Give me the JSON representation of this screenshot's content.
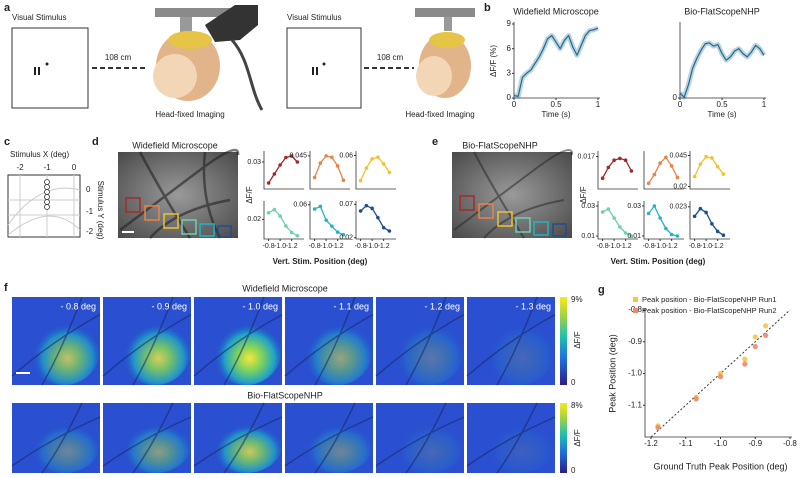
{
  "figure": {
    "panel_labels": [
      "a",
      "b",
      "c",
      "d",
      "e",
      "f",
      "g"
    ]
  },
  "panel_a": {
    "setups": [
      {
        "stimulus_label": "Visual Stimulus",
        "distance": "108 cm",
        "imaging_label": "Head-fixed Imaging"
      },
      {
        "stimulus_label": "Visual Stimulus",
        "distance": "108 cm",
        "imaging_label": "Head-fixed Imaging"
      }
    ]
  },
  "panel_c": {
    "x_label": "Stimulus X (deg)",
    "y_label": "Stimulus Y (deg)",
    "x_ticks": [
      "-2",
      "-1",
      "0"
    ],
    "y_ticks": [
      "0",
      "-1",
      "-2"
    ]
  },
  "panel_d": {
    "image_title": "Widefield Microscope",
    "y_label": "ΔF/F",
    "x_label": "Vert. Stim. Position (deg)"
  },
  "panel_e": {
    "image_title": "Bio-FlatScopeNHP",
    "y_label": "ΔF/F",
    "x_label": "Vert. Stim. Position (deg)"
  },
  "panel_f": {
    "rows": [
      {
        "title": "Widefield Microscope",
        "frames": [
          "- 0.8 deg",
          "- 0.9 deg",
          "- 1.0 deg",
          "- 1.1 deg",
          "- 1.2 deg",
          "- 1.3 deg"
        ],
        "colorbar": {
          "max": "9%",
          "label": "ΔF/F",
          "min": "0"
        }
      },
      {
        "title": "Bio-FlatScopeNHP",
        "colorbar": {
          "max": "8%",
          "label": "ΔF/F",
          "min": "0"
        }
      }
    ]
  },
  "chart_data": [
    {
      "type": "line",
      "title": "Widefield Microscope",
      "x_label": "Time (s)",
      "y_label": "ΔF/F (%)",
      "band": true,
      "color": "#1f6a95",
      "x": [
        0,
        0.05,
        0.1,
        0.15,
        0.2,
        0.25,
        0.3,
        0.35,
        0.4,
        0.45,
        0.5,
        0.55,
        0.6,
        0.65,
        0.7,
        0.75,
        0.8,
        0.85,
        0.9,
        0.95,
        1
      ],
      "values": [
        0.3,
        0.2,
        2.5,
        3.0,
        3.4,
        4.2,
        5.0,
        6.0,
        7.2,
        7.6,
        6.8,
        6.0,
        7.0,
        7.6,
        6.2,
        5.2,
        6.4,
        7.6,
        8.2,
        8.3,
        8.5
      ],
      "xlim": [
        0,
        1
      ],
      "ylim": [
        0,
        9
      ],
      "xticks": [
        0,
        0.5,
        1
      ],
      "yticks": [
        0,
        3,
        6,
        9
      ]
    },
    {
      "type": "line",
      "title": "Bio-FlatScopeNHP",
      "x_label": "Time (s)",
      "band": true,
      "color": "#1f6a95",
      "x": [
        0,
        0.05,
        0.1,
        0.15,
        0.2,
        0.25,
        0.3,
        0.35,
        0.4,
        0.45,
        0.5,
        0.55,
        0.6,
        0.65,
        0.7,
        0.75,
        0.8,
        0.85,
        0.9,
        0.95,
        1
      ],
      "values": [
        0.6,
        0.1,
        1.6,
        3.6,
        4.8,
        5.8,
        6.6,
        6.7,
        6.3,
        6.5,
        5.4,
        4.6,
        5.0,
        5.7,
        6.0,
        5.4,
        5.0,
        5.6,
        6.4,
        6.0,
        5.2
      ],
      "xlim": [
        0,
        1
      ],
      "ylim": [
        0,
        9
      ],
      "xticks": [
        0,
        0.5,
        1
      ],
      "yticks": [
        0
      ]
    },
    {
      "type": "line",
      "markers": true,
      "color": "#a32a2a",
      "x": [
        -0.8,
        -0.9,
        -1,
        -1.1,
        -1.2,
        -1.3
      ],
      "values": [
        0.016,
        0.022,
        0.028,
        0.033,
        0.034,
        0.03
      ],
      "xlim": [
        -0.72,
        -1.38
      ],
      "ylim": [
        0.012,
        0.036
      ],
      "yticks": [
        0.03
      ]
    },
    {
      "type": "line",
      "markers": true,
      "color": "#e8834a",
      "x": [
        -0.8,
        -0.9,
        -1,
        -1.1,
        -1.2,
        -1.3
      ],
      "values": [
        0.03,
        0.04,
        0.045,
        0.044,
        0.038,
        0.028
      ],
      "xlim": [
        -0.72,
        -1.38
      ],
      "ylim": [
        0.022,
        0.047
      ],
      "yticks": [
        0.045
      ]
    },
    {
      "type": "line",
      "markers": true,
      "color": "#f2c12e",
      "x": [
        -0.8,
        -0.9,
        -1,
        -1.1,
        -1.2,
        -1.3
      ],
      "values": [
        0.03,
        0.045,
        0.056,
        0.058,
        0.05,
        0.04
      ],
      "xlim": [
        -0.72,
        -1.38
      ],
      "ylim": [
        0.02,
        0.063
      ],
      "yticks": [
        0.06
      ]
    },
    {
      "type": "line",
      "markers": true,
      "color": "#6fcfb4",
      "x": [
        -0.8,
        -0.9,
        -1,
        -1.1,
        -1.2,
        -1.3
      ],
      "values": [
        0.024,
        0.026,
        0.022,
        0.016,
        0.012,
        0.01
      ],
      "xlim": [
        -0.72,
        -1.38
      ],
      "ylim": [
        0.008,
        0.03
      ],
      "yticks": [
        0.02
      ],
      "xticks": [
        -0.8,
        {
          "value": -1,
          "label": "-1.0"
        },
        -1.2
      ]
    },
    {
      "type": "line",
      "markers": true,
      "color": "#26b2c6",
      "x": [
        -0.8,
        -0.9,
        -1,
        -1.1,
        -1.2,
        -1.3
      ],
      "values": [
        0.055,
        0.058,
        0.042,
        0.035,
        0.028,
        0.025
      ],
      "xlim": [
        -0.72,
        -1.38
      ],
      "ylim": [
        0.02,
        0.062
      ],
      "yticks": [
        0.06
      ],
      "xticks": [
        -0.8,
        {
          "value": -1,
          "label": "-1.0"
        },
        -1.2
      ]
    },
    {
      "type": "line",
      "markers": true,
      "color": "#1f4e8c",
      "x": [
        -0.8,
        -0.9,
        -1,
        -1.1,
        -1.2,
        -1.3
      ],
      "values": [
        0.06,
        0.068,
        0.064,
        0.05,
        0.035,
        0.03
      ],
      "xlim": [
        -0.72,
        -1.38
      ],
      "ylim": [
        0.018,
        0.072
      ],
      "yticks": [
        0.07,
        0.02
      ],
      "xticks": [
        -0.8,
        {
          "value": -1,
          "label": "-1.0"
        },
        -1.2
      ]
    },
    {
      "type": "line",
      "markers": true,
      "color": "#a32a2a",
      "x": [
        -0.8,
        -0.9,
        -1,
        -1.1,
        -1.2,
        -1.3
      ],
      "values": [
        0.011,
        0.014,
        0.016,
        0.0165,
        0.016,
        0.013
      ],
      "xlim": [
        -0.72,
        -1.38
      ],
      "ylim": [
        0.008,
        0.018
      ],
      "yticks": [
        0.017
      ]
    },
    {
      "type": "line",
      "markers": true,
      "color": "#e8834a",
      "x": [
        -0.8,
        -0.9,
        -1,
        -1.1,
        -1.2,
        -1.3
      ],
      "values": [
        0.024,
        0.03,
        0.038,
        0.042,
        0.036,
        0.028
      ],
      "xlim": [
        -0.72,
        -1.38
      ],
      "ylim": [
        0.02,
        0.045
      ]
    },
    {
      "type": "line",
      "markers": true,
      "color": "#f2c12e",
      "x": [
        -0.8,
        -0.9,
        -1,
        -1.1,
        -1.2,
        -1.3
      ],
      "values": [
        0.028,
        0.038,
        0.044,
        0.043,
        0.036,
        0.03
      ],
      "xlim": [
        -0.72,
        -1.38
      ],
      "ylim": [
        0.018,
        0.047
      ],
      "yticks": [
        0.045,
        0.02
      ]
    },
    {
      "type": "line",
      "markers": true,
      "color": "#6fcfb4",
      "x": [
        -0.8,
        -0.9,
        -1,
        -1.1,
        -1.2,
        -1.3
      ],
      "values": [
        0.026,
        0.028,
        0.022,
        0.016,
        0.012,
        0.01
      ],
      "xlim": [
        -0.72,
        -1.38
      ],
      "ylim": [
        0.008,
        0.032
      ],
      "yticks": [
        0.03,
        0.01
      ],
      "xticks": [
        -0.8,
        {
          "value": -1,
          "label": "-1.0"
        },
        -1.2
      ]
    },
    {
      "type": "line",
      "markers": true,
      "color": "#26b2c6",
      "x": [
        -0.8,
        -0.9,
        -1,
        -1.1,
        -1.2,
        -1.3
      ],
      "values": [
        0.025,
        0.03,
        0.022,
        0.015,
        0.011,
        0.01
      ],
      "xlim": [
        -0.72,
        -1.38
      ],
      "ylim": [
        0.008,
        0.032
      ],
      "yticks": [
        0.03,
        0.01
      ],
      "xticks": [
        -0.8,
        {
          "value": -1,
          "label": "-1.0"
        },
        -1.2
      ]
    },
    {
      "type": "line",
      "markers": true,
      "color": "#1f4e8c",
      "x": [
        -0.8,
        -0.9,
        -1,
        -1.1,
        -1.2,
        -1.3
      ],
      "values": [
        0.018,
        0.022,
        0.02,
        0.014,
        0.01,
        0.008
      ],
      "xlim": [
        -0.72,
        -1.38
      ],
      "ylim": [
        0.006,
        0.025
      ],
      "yticks": [
        0.023
      ],
      "xticks": [
        -0.8,
        {
          "value": -1,
          "label": "-1.0"
        },
        -1.2
      ]
    },
    {
      "type": "scatter",
      "x_label": "Ground Truth Peak Position (deg)",
      "y_label": "Peak Position (deg)",
      "identity_line": true,
      "series": [
        {
          "name": "Peak position - Bio-FlatScopeNHP Run1",
          "color": "#f5c542",
          "x": [
            -1.18,
            -1.07,
            -1.0,
            -0.93,
            -0.9,
            -0.87
          ],
          "values": [
            -1.165,
            -1.075,
            -1.0,
            -0.955,
            -0.885,
            -0.85
          ]
        },
        {
          "name": "Peak position - Bio-FlatScopeNHP Run2",
          "color": "#f0866e",
          "x": [
            -1.18,
            -1.07,
            -1.0,
            -0.93,
            -0.9,
            -0.87
          ],
          "values": [
            -1.17,
            -1.08,
            -1.01,
            -0.97,
            -0.915,
            -0.88
          ]
        }
      ],
      "xlim": [
        -1.2,
        -0.8
      ],
      "ylim": [
        -1.2,
        -0.8
      ],
      "xticks": [
        -1.2,
        -1.1,
        {
          "value": -1,
          "label": "-1.0"
        },
        -0.9,
        -0.8
      ],
      "yticks": [
        -0.8,
        -0.9,
        {
          "value": -1,
          "label": "-1.0"
        },
        -1.1
      ]
    }
  ]
}
